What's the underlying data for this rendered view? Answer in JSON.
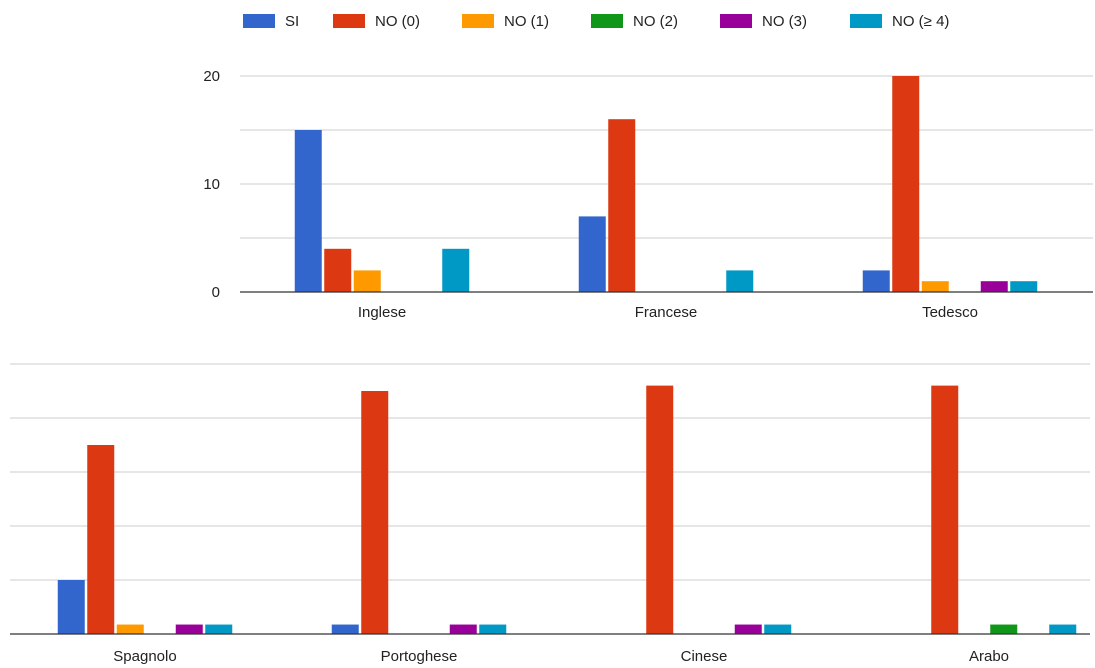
{
  "legend": [
    {
      "label": "SI",
      "color": "#3366cc"
    },
    {
      "label": "NO (0)",
      "color": "#dc3912"
    },
    {
      "label": "NO (1)",
      "color": "#ff9900"
    },
    {
      "label": "NO (2)",
      "color": "#109618"
    },
    {
      "label": "NO (3)",
      "color": "#990099"
    },
    {
      "label": "NO (≥ 4)",
      "color": "#0099c6"
    }
  ],
  "chart_data": [
    {
      "type": "bar",
      "categories": [
        "Inglese",
        "Francese",
        "Tedesco"
      ],
      "series": [
        {
          "name": "SI",
          "values": [
            15,
            7,
            2
          ]
        },
        {
          "name": "NO (0)",
          "values": [
            4,
            16,
            20
          ]
        },
        {
          "name": "NO (1)",
          "values": [
            2,
            0,
            1
          ]
        },
        {
          "name": "NO (2)",
          "values": [
            0,
            0,
            0
          ]
        },
        {
          "name": "NO (3)",
          "values": [
            0,
            0,
            1
          ]
        },
        {
          "name": "NO (≥ 4)",
          "values": [
            4,
            2,
            1
          ]
        }
      ],
      "ylim": [
        0,
        20
      ],
      "yticks": [
        "0",
        "10",
        "20"
      ],
      "grid": true,
      "legend_position": "top"
    },
    {
      "type": "bar",
      "categories": [
        "Spagnolo",
        "Portoghese",
        "Cinese",
        "Arabo"
      ],
      "series": [
        {
          "name": "SI",
          "values": [
            2,
            0.35,
            0,
            0
          ]
        },
        {
          "name": "NO (0)",
          "values": [
            7,
            9,
            9.2,
            9.2
          ]
        },
        {
          "name": "NO (1)",
          "values": [
            0.35,
            0,
            0,
            0
          ]
        },
        {
          "name": "NO (2)",
          "values": [
            0,
            0,
            0,
            0.35
          ]
        },
        {
          "name": "NO (3)",
          "values": [
            0.35,
            0.35,
            0.35,
            0
          ]
        },
        {
          "name": "NO (≥ 4)",
          "values": [
            0.35,
            0.35,
            0.35,
            0.35
          ]
        }
      ],
      "ylim": [
        0,
        10
      ],
      "grid": true
    }
  ]
}
